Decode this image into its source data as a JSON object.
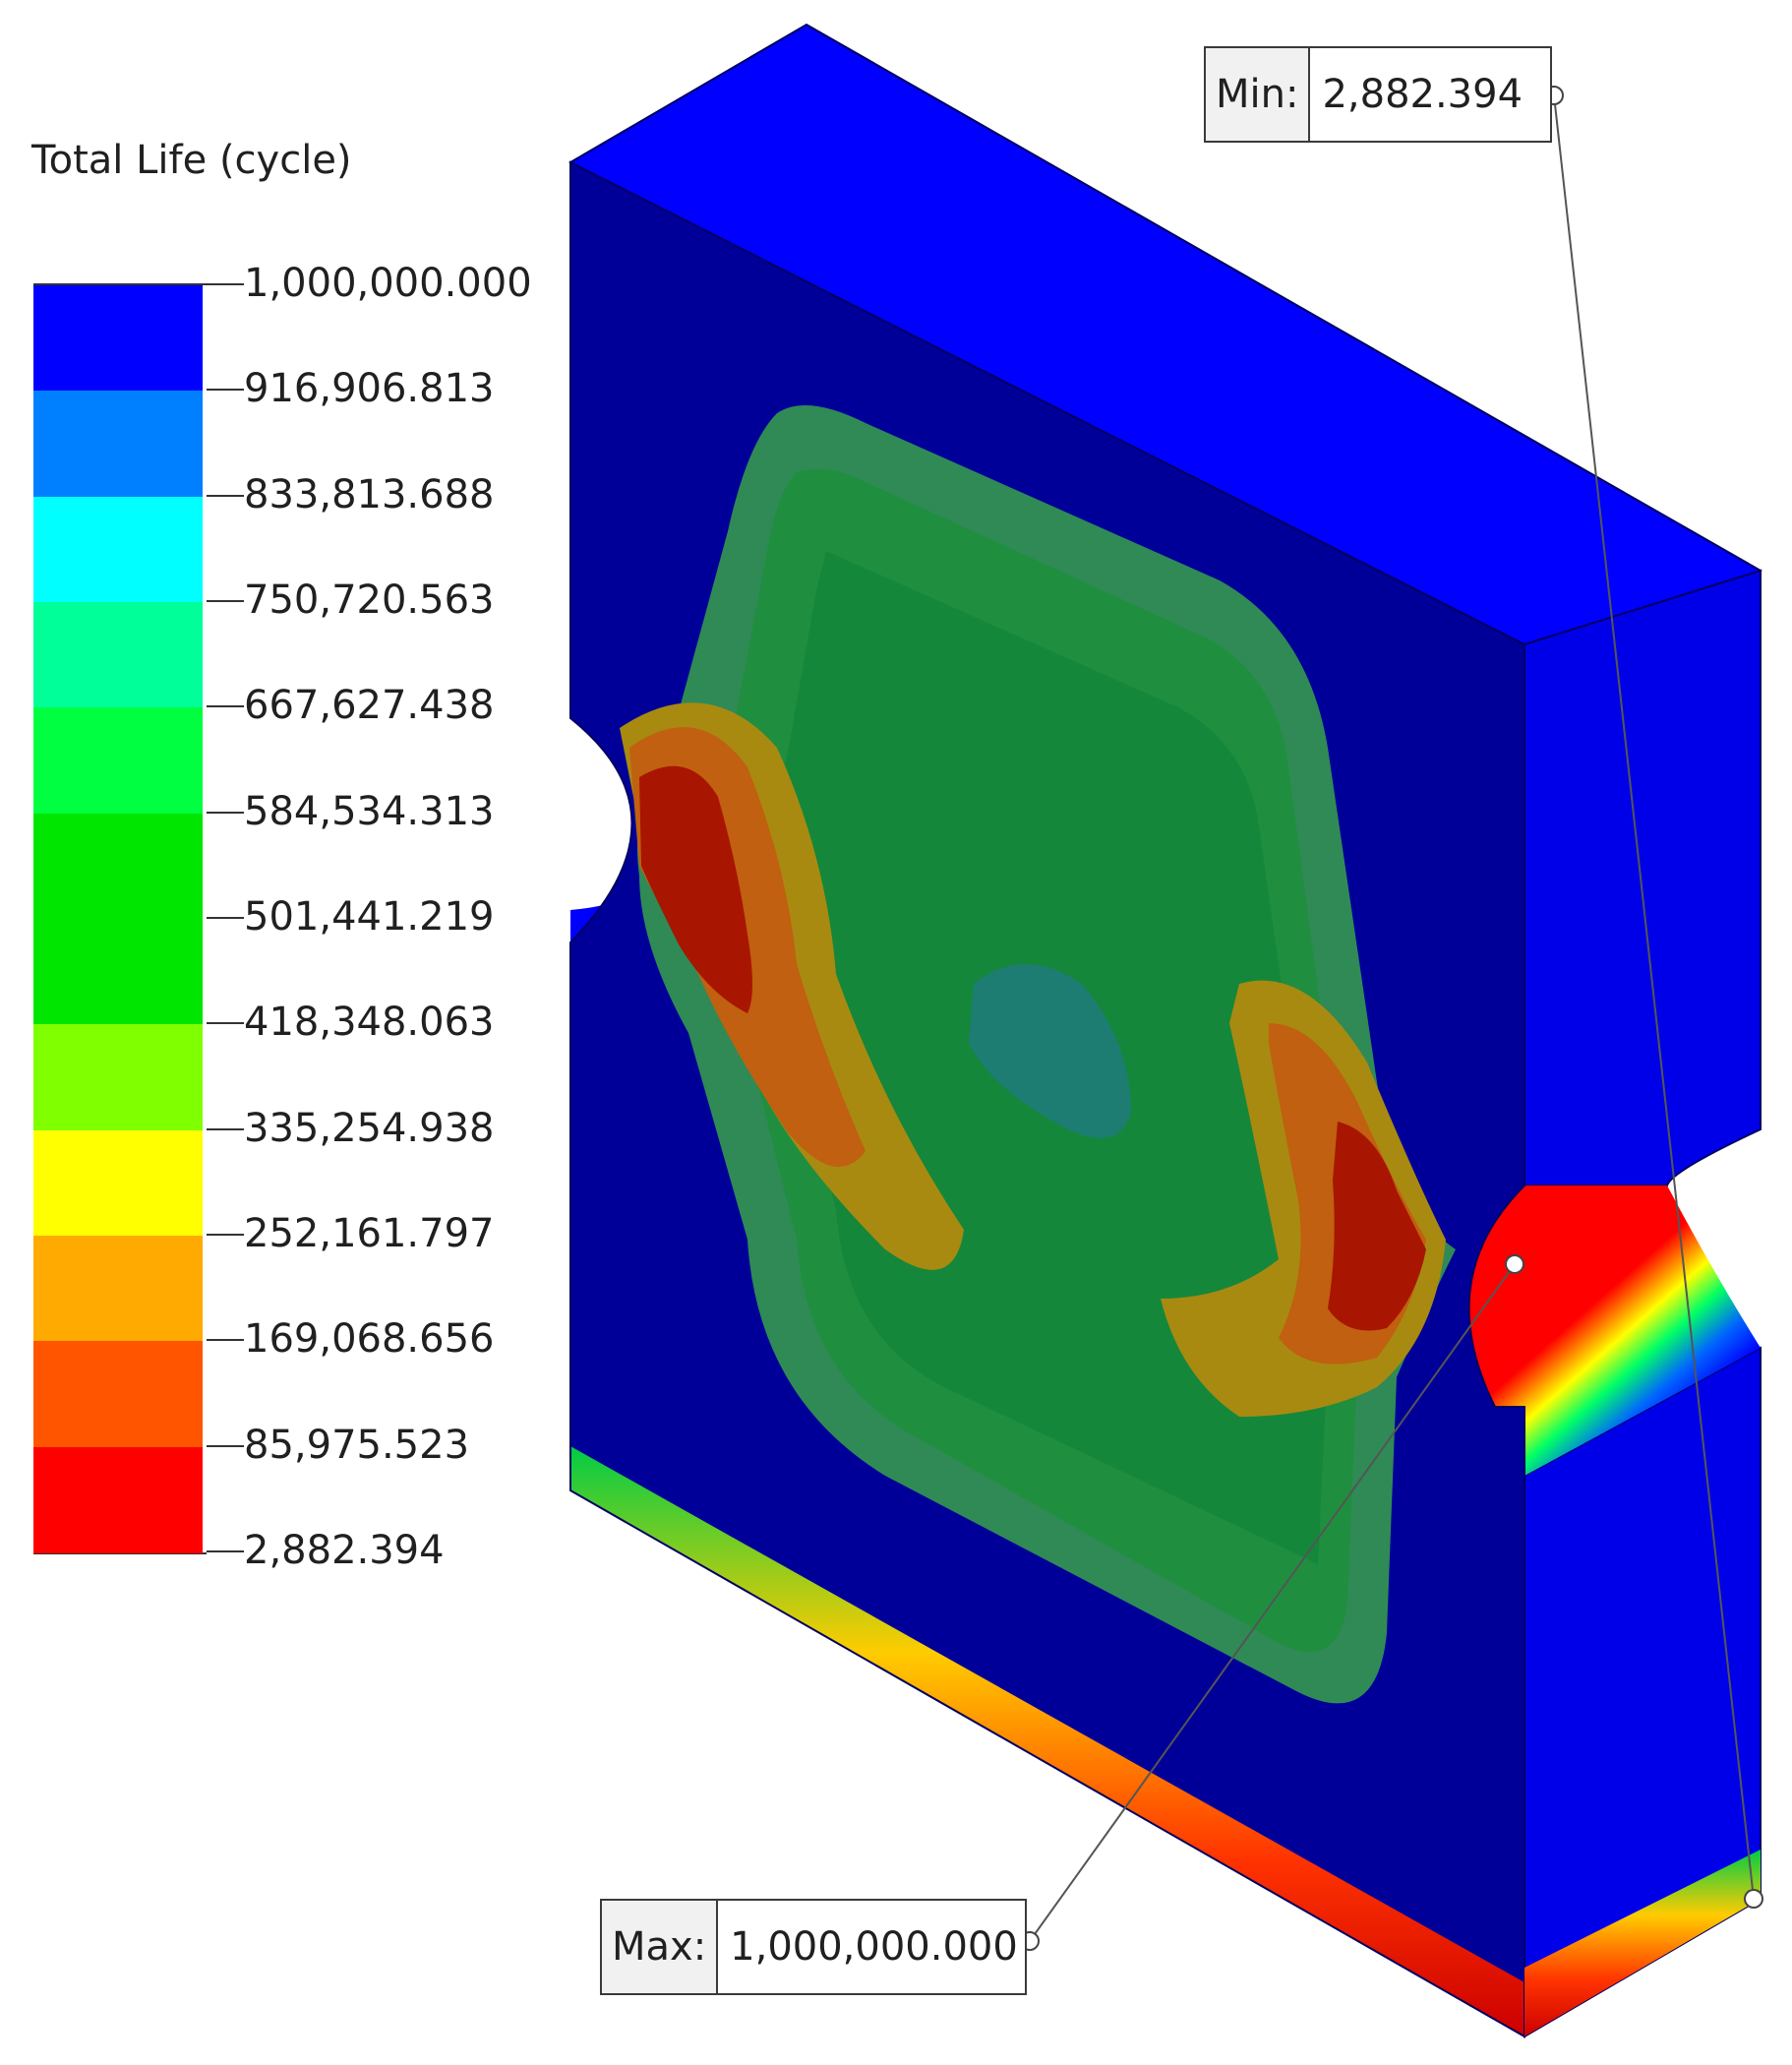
{
  "legend": {
    "title": "Total Life (cycle)",
    "labels": [
      "1,000,000.000",
      "916,906.813",
      "833,813.688",
      "750,720.563",
      "667,627.438",
      "584,534.313",
      "501,441.219",
      "418,348.063",
      "335,254.938",
      "252,161.797",
      "169,068.656",
      "85,975.523",
      "2,882.394"
    ],
    "band_colors": [
      "#0000ff",
      "#0080ff",
      "#00ffff",
      "#00ff99",
      "#00ff40",
      "#00e600",
      "#00e600",
      "#80ff00",
      "#ffff00",
      "#ffaa00",
      "#ff5500",
      "#ff0000"
    ]
  },
  "probes": {
    "min": {
      "label": "Min:",
      "value": "2,882.394"
    },
    "max": {
      "label": "Max:",
      "value": "1,000,000.000"
    }
  }
}
